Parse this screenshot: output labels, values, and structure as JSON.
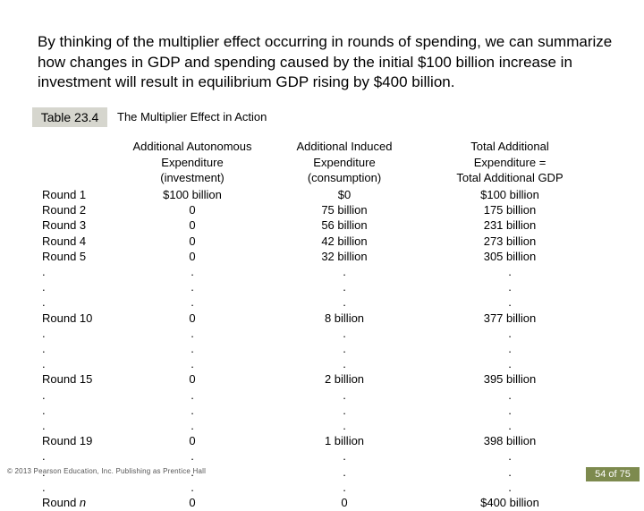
{
  "intro_text": "By thinking of the multiplier effect occurring in rounds of spending, we can summarize how changes in GDP and spending caused by the initial $100 billion increase in investment will result in equilibrium GDP rising by $400 billion.",
  "table_label": "Table 23.4",
  "table_title": "The Multiplier Effect in Action",
  "headers": {
    "col1": [
      "Additional Autonomous",
      "Expenditure",
      "(investment)"
    ],
    "col2": [
      "Additional Induced",
      "Expenditure",
      "(consumption)"
    ],
    "col3": [
      "Total Additional",
      "Expenditure =",
      "Total Additional GDP"
    ]
  },
  "rows": [
    {
      "round": "Round 1",
      "autonomous": "$100 billion",
      "induced": "$0",
      "total": "$100 billion"
    },
    {
      "round": "Round 2",
      "autonomous": "0",
      "induced": "75 billion",
      "total": "175 billion"
    },
    {
      "round": "Round 3",
      "autonomous": "0",
      "induced": "56 billion",
      "total": "231 billion"
    },
    {
      "round": "Round 4",
      "autonomous": "0",
      "induced": "42 billion",
      "total": "273 billion"
    },
    {
      "round": "Round 5",
      "autonomous": "0",
      "induced": "32 billion",
      "total": "305 billion"
    },
    {
      "round": ".",
      "autonomous": ".",
      "induced": ".",
      "total": "."
    },
    {
      "round": ".",
      "autonomous": ".",
      "induced": ".",
      "total": "."
    },
    {
      "round": ".",
      "autonomous": ".",
      "induced": ".",
      "total": "."
    },
    {
      "round": "Round 10",
      "autonomous": "0",
      "induced": "8 billion",
      "total": "377 billion"
    },
    {
      "round": ".",
      "autonomous": ".",
      "induced": ".",
      "total": "."
    },
    {
      "round": ".",
      "autonomous": ".",
      "induced": ".",
      "total": "."
    },
    {
      "round": ".",
      "autonomous": ".",
      "induced": ".",
      "total": "."
    },
    {
      "round": "Round 15",
      "autonomous": "0",
      "induced": "2 billion",
      "total": "395 billion"
    },
    {
      "round": ".",
      "autonomous": ".",
      "induced": ".",
      "total": "."
    },
    {
      "round": ".",
      "autonomous": ".",
      "induced": ".",
      "total": "."
    },
    {
      "round": ".",
      "autonomous": ".",
      "induced": ".",
      "total": "."
    },
    {
      "round": "Round 19",
      "autonomous": "0",
      "induced": "1 billion",
      "total": "398 billion"
    },
    {
      "round": ".",
      "autonomous": ".",
      "induced": ".",
      "total": "."
    },
    {
      "round": ".",
      "autonomous": ".",
      "induced": ".",
      "total": "."
    },
    {
      "round": ".",
      "autonomous": ".",
      "induced": ".",
      "total": "."
    },
    {
      "round": "Round n",
      "autonomous": "0",
      "induced": "0",
      "total": "$400 billion"
    }
  ],
  "footer": "© 2013 Pearson Education, Inc. Publishing as Prentice Hall",
  "page_indicator": "54 of 75",
  "colors": {
    "label_bg": "#d6d6ce",
    "badge_bg": "#7d8a4e"
  }
}
